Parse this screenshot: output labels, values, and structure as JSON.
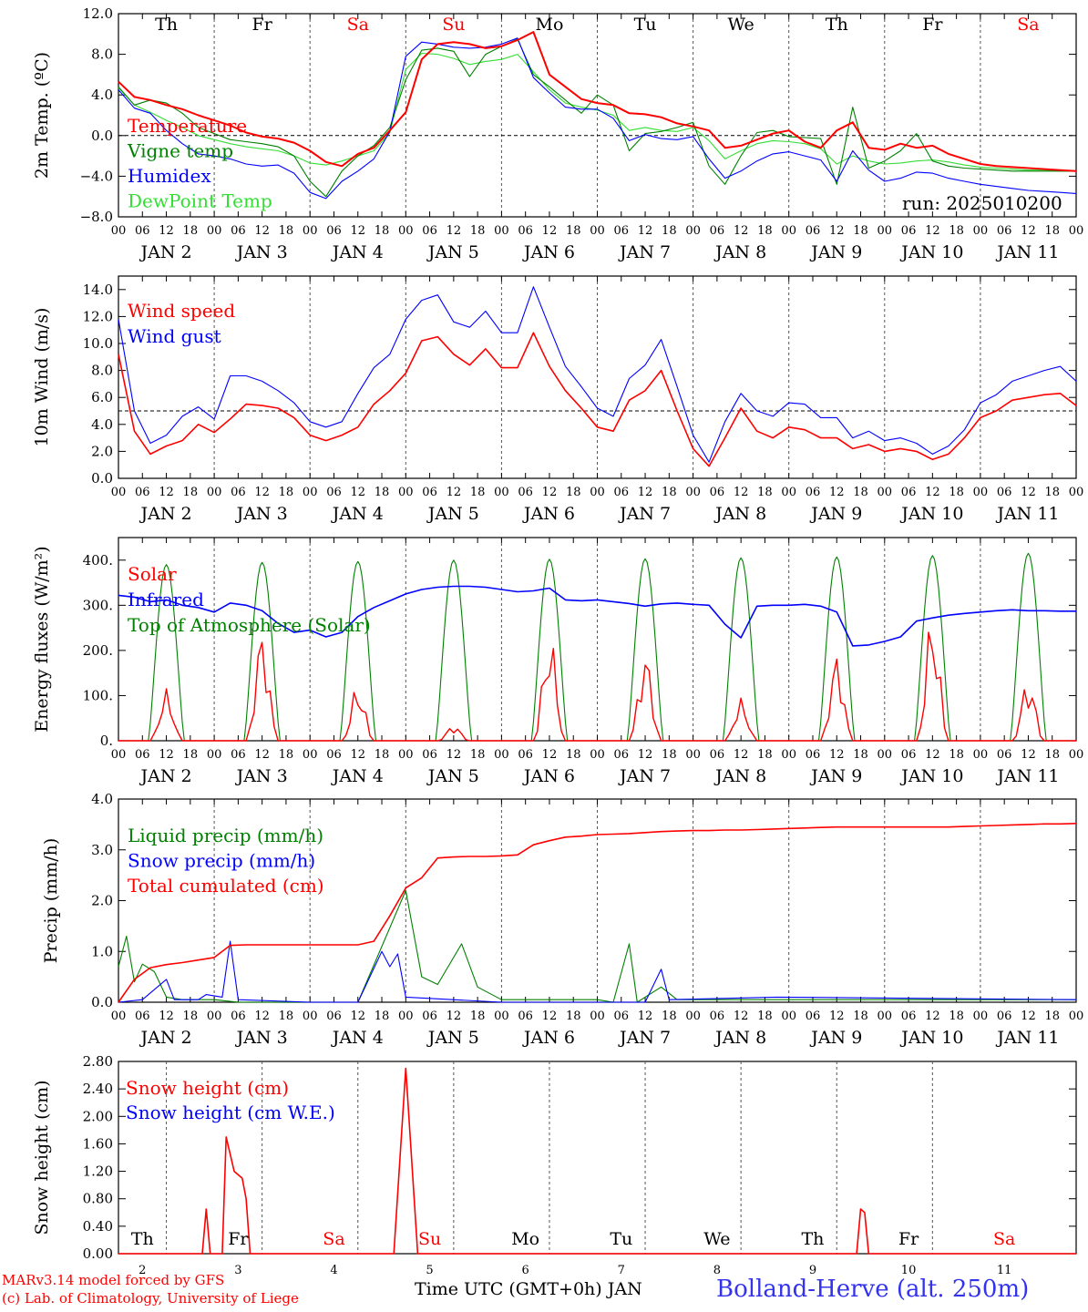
{
  "station_title": "Bolland-Herve (alt. 250m)",
  "credits": [
    "MARv3.14 model forced by GFS",
    "(c) Lab. of Climatology, University of Liege"
  ],
  "x_axis_title": "Time UTC (GMT+0h) JAN",
  "run_label": "run: 2025010200",
  "hour_ticks": [
    "00",
    "06",
    "12",
    "18"
  ],
  "date_labels": [
    "JAN 2",
    "JAN 3",
    "JAN 4",
    "JAN 5",
    "JAN 6",
    "JAN 7",
    "JAN 8",
    "JAN 9",
    "JAN 10",
    "JAN 11"
  ],
  "day_numbers": [
    "2",
    "3",
    "4",
    "5",
    "6",
    "7",
    "8",
    "9",
    "10",
    "11"
  ],
  "weekdays": [
    "Th",
    "Fr",
    "Sa",
    "Su",
    "Mo",
    "Tu",
    "We",
    "Th",
    "Fr",
    "Sa"
  ],
  "weekend_days": [
    2,
    3,
    9
  ],
  "colors": {
    "red": "#ff0000",
    "green": "#008000",
    "blue": "#0000ff",
    "lightgreen": "#33dd33",
    "title_blue": "#3333ee",
    "credit_red": "#ff0000"
  },
  "chart_data": [
    {
      "type": "line",
      "ylabel": "2m Temp. (ºC)",
      "ylim": [
        -8,
        12
      ],
      "yticks": [
        "12.0",
        "8.0",
        "4.0",
        "0.0",
        "−4.0",
        "−8.0"
      ],
      "reference_line": 0,
      "x": "hours since JAN 2 00 UTC (0-240, every 6h)",
      "series": [
        {
          "name": "Temperature",
          "color": "red",
          "values": [
            5.3,
            3.8,
            3.5,
            3.0,
            2.6,
            2.0,
            1.5,
            1.0,
            0.3,
            -0.1,
            -0.3,
            -0.7,
            -1.5,
            -2.6,
            -3.0,
            -1.8,
            -1.2,
            0.5,
            2.3,
            7.5,
            9.0,
            9.2,
            9.0,
            8.6,
            8.8,
            9.4,
            10.2,
            6.0,
            4.8,
            3.6,
            3.2,
            3.0,
            2.2,
            2.1,
            1.8,
            1.2,
            0.9,
            0.5,
            -1.2,
            -1.0,
            -0.4,
            0.2,
            0.5,
            -0.6,
            -1.2,
            0.5,
            1.3,
            -1.2,
            -1.4,
            -0.8,
            -1.2,
            -1.0,
            -1.8,
            -2.3,
            -2.8,
            -3.0,
            -3.1,
            -3.2,
            -3.3,
            -3.4,
            -3.5
          ]
        },
        {
          "name": "Vigne temp",
          "color": "green",
          "values": [
            4.8,
            3.0,
            3.5,
            3.2,
            2.2,
            0.8,
            0.2,
            -0.4,
            -0.6,
            -0.8,
            -1.1,
            -2.0,
            -4.5,
            -6.0,
            -3.5,
            -2.0,
            -1.0,
            0.8,
            5.5,
            8.4,
            8.6,
            8.3,
            5.8,
            8.0,
            8.8,
            9.5,
            6.0,
            4.8,
            3.5,
            2.2,
            4.0,
            3.0,
            -1.5,
            0.2,
            0.4,
            0.8,
            1.3,
            -3.0,
            -4.8,
            -2.0,
            0.3,
            0.5,
            -0.1,
            -0.2,
            -0.3,
            -4.8,
            2.8,
            -3.2,
            -2.5,
            -1.5,
            0.2,
            -2.5,
            -3.0,
            -3.2,
            -3.3,
            -3.4,
            -3.5,
            -3.5,
            -3.5,
            -3.5,
            -3.5
          ]
        },
        {
          "name": "Humidex",
          "color": "blue",
          "values": [
            4.5,
            2.7,
            2.2,
            0.5,
            -0.8,
            -1.8,
            -2.0,
            -2.3,
            -2.8,
            -3.0,
            -2.9,
            -3.7,
            -5.6,
            -6.2,
            -4.5,
            -3.5,
            -2.3,
            0.4,
            7.8,
            9.2,
            9.0,
            8.7,
            8.6,
            8.7,
            9.0,
            9.6,
            5.7,
            4.2,
            2.8,
            2.6,
            2.6,
            1.7,
            -0.5,
            0.1,
            -0.3,
            -0.4,
            -0.1,
            -2.3,
            -4.2,
            -3.5,
            -2.5,
            -1.8,
            -1.6,
            -2.0,
            -2.4,
            -4.5,
            -1.5,
            -3.4,
            -4.5,
            -4.2,
            -3.6,
            -3.7,
            -4.2,
            -4.5,
            -4.8,
            -5.0,
            -5.2,
            -5.4,
            -5.5,
            -5.6,
            -5.7
          ]
        },
        {
          "name": "DewPoint Temp",
          "color": "lightgreen",
          "values": [
            4.7,
            3.0,
            2.3,
            1.5,
            0.8,
            0.0,
            -0.4,
            -0.8,
            -1.1,
            -1.3,
            -1.5,
            -2.0,
            -2.7,
            -2.9,
            -2.5,
            -2.0,
            -1.5,
            0.3,
            6.5,
            8.1,
            8.0,
            7.6,
            7.0,
            7.3,
            7.5,
            8.0,
            6.3,
            4.5,
            3.2,
            2.8,
            2.5,
            2.0,
            0.5,
            0.8,
            0.5,
            0.4,
            0.8,
            -0.5,
            -2.3,
            -1.5,
            -0.8,
            -0.5,
            -0.6,
            -0.8,
            -1.3,
            -2.8,
            -2.0,
            -2.5,
            -2.8,
            -2.7,
            -2.5,
            -2.4,
            -2.6,
            -2.9,
            -3.1,
            -3.2,
            -3.3,
            -3.4,
            -3.4,
            -3.5,
            -3.5
          ]
        }
      ]
    },
    {
      "type": "line",
      "ylabel": "10m Wind (m/s)",
      "ylim": [
        0,
        15
      ],
      "yticks": [
        "14.0",
        "12.0",
        "10.0",
        "8.0",
        "6.0",
        "4.0",
        "2.0",
        "0.0"
      ],
      "reference_line": 5,
      "series": [
        {
          "name": "Wind speed",
          "color": "red",
          "values": [
            9.2,
            3.5,
            1.8,
            2.4,
            2.8,
            4.0,
            3.4,
            4.4,
            5.5,
            5.4,
            5.2,
            4.5,
            3.2,
            2.8,
            3.2,
            3.8,
            5.5,
            6.5,
            7.8,
            10.2,
            10.5,
            9.2,
            8.4,
            9.6,
            8.2,
            8.2,
            10.8,
            8.3,
            6.5,
            5.2,
            3.8,
            3.5,
            5.8,
            6.5,
            8.0,
            5.0,
            2.2,
            0.9,
            3.0,
            5.2,
            3.5,
            3.0,
            3.8,
            3.6,
            3.0,
            3.0,
            2.2,
            2.5,
            2.0,
            2.2,
            2.0,
            1.4,
            1.8,
            3.0,
            4.5,
            5.0,
            5.8,
            6.0,
            6.2,
            6.3,
            5.4
          ]
        },
        {
          "name": "Wind gust",
          "color": "blue",
          "values": [
            11.8,
            5.0,
            2.6,
            3.2,
            4.6,
            5.3,
            4.4,
            7.6,
            7.6,
            7.2,
            6.5,
            5.6,
            4.2,
            3.8,
            4.2,
            6.3,
            8.2,
            9.2,
            11.8,
            13.2,
            13.6,
            11.6,
            11.2,
            12.4,
            10.8,
            10.8,
            14.2,
            11.2,
            8.3,
            6.8,
            5.2,
            4.6,
            7.4,
            8.4,
            10.3,
            6.8,
            3.2,
            1.2,
            4.2,
            6.3,
            5.0,
            4.6,
            5.6,
            5.5,
            4.5,
            4.5,
            3.0,
            3.5,
            2.8,
            3.0,
            2.6,
            1.8,
            2.4,
            3.6,
            5.6,
            6.2,
            7.2,
            7.6,
            8.0,
            8.3,
            7.2
          ]
        }
      ]
    },
    {
      "type": "line",
      "ylabel": "Energy fluxes (W/m²)",
      "ylim": [
        0,
        450
      ],
      "yticks": [
        "400.",
        "300.",
        "200.",
        "100.",
        "0."
      ],
      "series": [
        {
          "name": "Solar",
          "color": "red",
          "peaks": [
            115,
            250,
            125,
            35,
            240,
            200,
            95,
            195,
            285,
            140
          ]
        },
        {
          "name": "Infrared",
          "color": "blue",
          "values": [
            322,
            318,
            308,
            312,
            300,
            295,
            285,
            305,
            300,
            288,
            260,
            240,
            245,
            230,
            240,
            275,
            295,
            310,
            325,
            335,
            340,
            342,
            342,
            340,
            335,
            330,
            332,
            338,
            312,
            310,
            312,
            308,
            304,
            298,
            303,
            305,
            302,
            300,
            258,
            228,
            298,
            300,
            300,
            302,
            298,
            285,
            210,
            212,
            220,
            230,
            265,
            272,
            278,
            282,
            285,
            288,
            290,
            288,
            288,
            287,
            287
          ]
        },
        {
          "name": "Top of Atmosphere (Solar)",
          "color": "green",
          "peaks": [
            390,
            395,
            397,
            400,
            402,
            403,
            405,
            407,
            410,
            415
          ]
        }
      ]
    },
    {
      "type": "line",
      "ylabel": "Precip (mm/h)",
      "ylim": [
        0,
        4
      ],
      "yticks": [
        "4.0",
        "3.0",
        "2.0",
        "1.0",
        "0.0"
      ],
      "series": [
        {
          "name": "Liquid precip (mm/h)",
          "color": "green"
        },
        {
          "name": "Snow precip (mm/h)",
          "color": "blue"
        },
        {
          "name": "Total cumulated (cm)",
          "color": "red",
          "values": [
            0.0,
            0.45,
            0.68,
            0.74,
            0.78,
            0.83,
            0.88,
            1.12,
            1.13,
            1.13,
            1.13,
            1.13,
            1.13,
            1.13,
            1.13,
            1.13,
            1.2,
            1.7,
            2.25,
            2.45,
            2.84,
            2.86,
            2.87,
            2.87,
            2.88,
            2.9,
            3.1,
            3.18,
            3.25,
            3.27,
            3.3,
            3.31,
            3.32,
            3.34,
            3.36,
            3.37,
            3.38,
            3.38,
            3.39,
            3.39,
            3.4,
            3.41,
            3.42,
            3.43,
            3.44,
            3.45,
            3.45,
            3.45,
            3.45,
            3.45,
            3.45,
            3.45,
            3.45,
            3.46,
            3.47,
            3.48,
            3.49,
            3.5,
            3.51,
            3.51,
            3.52
          ]
        }
      ]
    },
    {
      "type": "line",
      "ylabel": "Snow height (cm)",
      "ylim": [
        0,
        2.8
      ],
      "yticks": [
        "2.80",
        "2.40",
        "2.00",
        "1.60",
        "1.20",
        "0.80",
        "0.40",
        "0.00"
      ],
      "series": [
        {
          "name": "Snow height (cm)",
          "color": "red",
          "points": [
            [
              0,
              0
            ],
            [
              21,
              0
            ],
            [
              22,
              0.65
            ],
            [
              23,
              0
            ],
            [
              26,
              0
            ],
            [
              27,
              1.7
            ],
            [
              29,
              1.2
            ],
            [
              31,
              1.1
            ],
            [
              32,
              0.8
            ],
            [
              33,
              0
            ],
            [
              69,
              0
            ],
            [
              72,
              2.7
            ],
            [
              75,
              0
            ],
            [
              185,
              0
            ],
            [
              186,
              0.65
            ],
            [
              187,
              0.6
            ],
            [
              188,
              0
            ],
            [
              240,
              0
            ]
          ]
        },
        {
          "name": "Snow height (cm W.E.)",
          "color": "blue"
        }
      ]
    }
  ]
}
